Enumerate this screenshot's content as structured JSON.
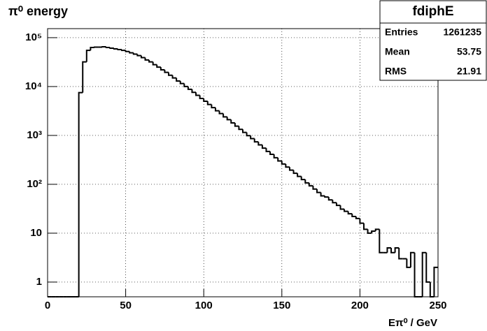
{
  "chart_data": {
    "type": "histogram",
    "title": "π⁰ energy",
    "x_label": "Eπ⁰ / GeV",
    "stats": {
      "name": "fdiphE",
      "rows": [
        [
          "Entries",
          "1261235"
        ],
        [
          "Mean",
          "53.75"
        ],
        [
          "RMS",
          "21.91"
        ]
      ]
    },
    "log_y": true,
    "grid": true,
    "color": "#000000",
    "xlim": [
      0,
      250
    ],
    "xticks": [
      0,
      50,
      100,
      150,
      200,
      250
    ],
    "ylim": [
      0.5,
      153000
    ],
    "yticks": [
      1,
      10,
      {
        "value": 100,
        "label": "10²"
      },
      {
        "value": 1000,
        "label": "10³"
      },
      {
        "value": 10000,
        "label": "10⁴"
      },
      {
        "value": 100000,
        "label": "10⁵"
      }
    ],
    "bins": [
      0,
      2.5,
      5,
      7.5,
      10,
      12.5,
      15,
      17.5,
      20,
      22.5,
      25,
      27.5,
      30,
      32.5,
      35,
      37.5,
      40,
      42.5,
      45,
      47.5,
      50,
      52.5,
      55,
      57.5,
      60,
      62.5,
      65,
      67.5,
      70,
      72.5,
      75,
      77.5,
      80,
      82.5,
      85,
      87.5,
      90,
      92.5,
      95,
      97.5,
      100,
      102.5,
      105,
      107.5,
      110,
      112.5,
      115,
      117.5,
      120,
      122.5,
      125,
      127.5,
      130,
      132.5,
      135,
      137.5,
      140,
      142.5,
      145,
      147.5,
      150,
      152.5,
      155,
      157.5,
      160,
      162.5,
      165,
      167.5,
      170,
      172.5,
      175,
      177.5,
      180,
      182.5,
      185,
      187.5,
      190,
      192.5,
      195,
      197.5,
      200,
      202.5,
      205,
      207.5,
      210,
      212.5,
      215,
      217.5,
      220,
      222.5,
      225,
      227.5,
      230,
      232.5,
      235,
      237.5,
      240,
      242.5,
      245,
      247.5,
      250
    ],
    "values": [
      0,
      0,
      0,
      0,
      0,
      0,
      0,
      0,
      7500,
      32000,
      55000,
      63000,
      64000,
      64000,
      65000,
      63000,
      61000,
      59000,
      57000,
      55000,
      52000,
      49000,
      46000,
      43000,
      39000,
      35000,
      32000,
      28000,
      25000,
      22000,
      19500,
      17000,
      15000,
      13000,
      11500,
      10000,
      8800,
      7600,
      6600,
      5700,
      5000,
      4300,
      3700,
      3200,
      2800,
      2400,
      2100,
      1800,
      1550,
      1330,
      1150,
      990,
      860,
      740,
      640,
      550,
      470,
      410,
      350,
      300,
      260,
      225,
      195,
      168,
      145,
      125,
      107,
      93,
      80,
      68,
      58,
      55,
      48,
      42,
      37,
      31,
      28,
      25,
      22,
      20,
      16,
      12,
      10,
      11,
      12,
      4,
      4,
      5,
      4,
      5,
      3,
      3,
      2,
      4,
      0,
      0,
      4,
      1,
      0,
      2
    ]
  }
}
